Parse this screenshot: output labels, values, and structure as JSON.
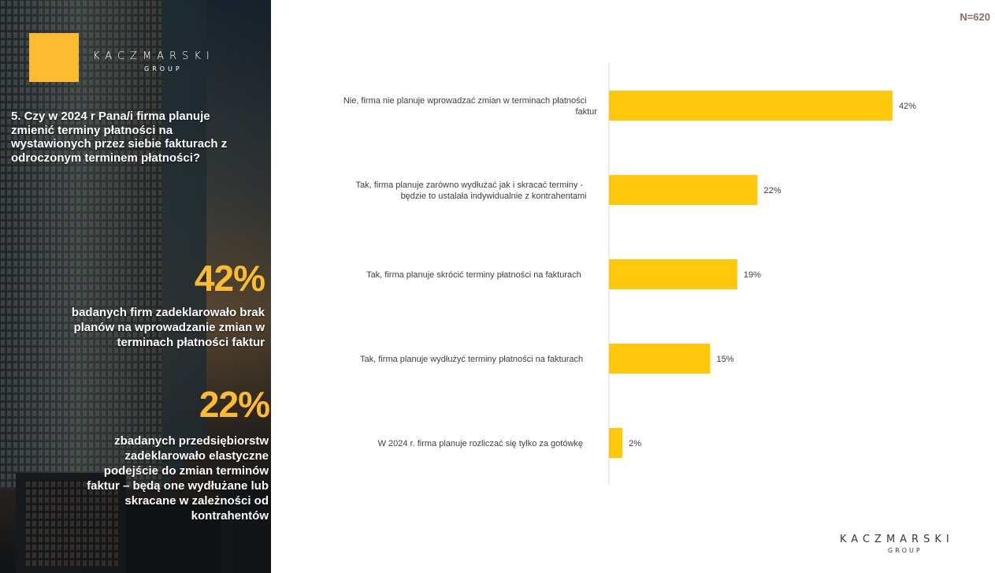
{
  "brand": {
    "name": "KACZMARSKI",
    "group": "GROUP",
    "accent": "#fdbb31"
  },
  "sample_size": "N=620",
  "question": "5. Czy w 2024 r  Pana/i firma planuje zmienić terminy płatności na wystawionych przez siebie fakturach z odroczonym terminem płatności?",
  "highlights": [
    {
      "value": "42%",
      "text": "badanych firm zadeklarowało brak planów na wprowadzanie zmian w terminach płatności faktur"
    },
    {
      "value": "22%",
      "text": "zbadanych przedsiębiorstw zadeklarowało elastyczne podejście do zmian terminów faktur – będą one wydłużane lub skracane w zależności od kontrahentów"
    }
  ],
  "chart_data": {
    "type": "bar",
    "orientation": "horizontal",
    "bar_color": "#ffc80a",
    "categories": [
      "Nie, firma nie planuje wprowadzać zmian w terminach płatności faktur",
      "Tak, firma planuje zarówno wydłużać jak i skracać terminy - będzie to ustalała indywidualnie z kontrahentami",
      "Tak, firma planuje skrócić terminy płatności na fakturach",
      "Tak, firma planuje wydłużyć terminy płatności na fakturach",
      "W 2024 r. firma planuje rozliczać się tylko za gotówkę"
    ],
    "values": [
      42,
      22,
      19,
      15,
      2
    ],
    "value_labels": [
      "42%",
      "22%",
      "19%",
      "15%",
      "2%"
    ],
    "xlim": [
      0,
      100
    ],
    "grid": false,
    "legend": "none"
  }
}
